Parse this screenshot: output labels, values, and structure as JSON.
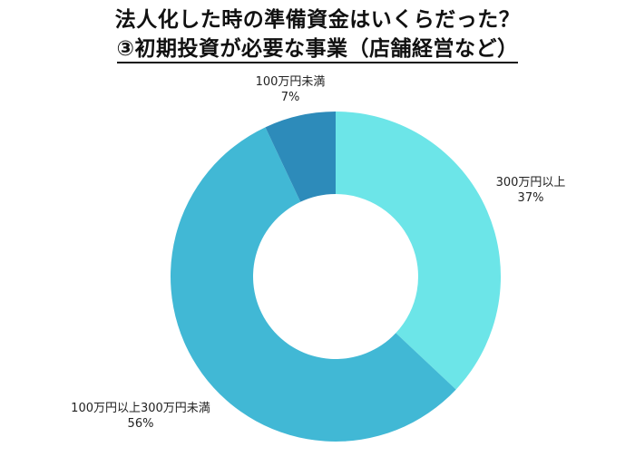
{
  "title": {
    "line1": "法人化した時の準備資金はいくらだった？",
    "line2": "③初期投資が必要な事業（店舗経営など）"
  },
  "chart_data": {
    "type": "pie",
    "donut": true,
    "title": "法人化した時の準備資金はいくらだった？ ③初期投資が必要な事業（店舗経営など）",
    "categories": [
      "300万円以上",
      "100万円以上300万円未満",
      "100万円未満"
    ],
    "values": [
      37,
      56,
      7
    ],
    "unit": "%",
    "colors": [
      "#6CE5E8",
      "#41B8D5",
      "#2D8BBA"
    ],
    "start_angle": "12 o'clock, clockwise",
    "legend": "none (direct labels)"
  },
  "labels": [
    {
      "name": "300万円以上",
      "pct": "37%"
    },
    {
      "name": "100万円以上300万円未満",
      "pct": "56%"
    },
    {
      "name": "100万円未満",
      "pct": "7%"
    }
  ]
}
